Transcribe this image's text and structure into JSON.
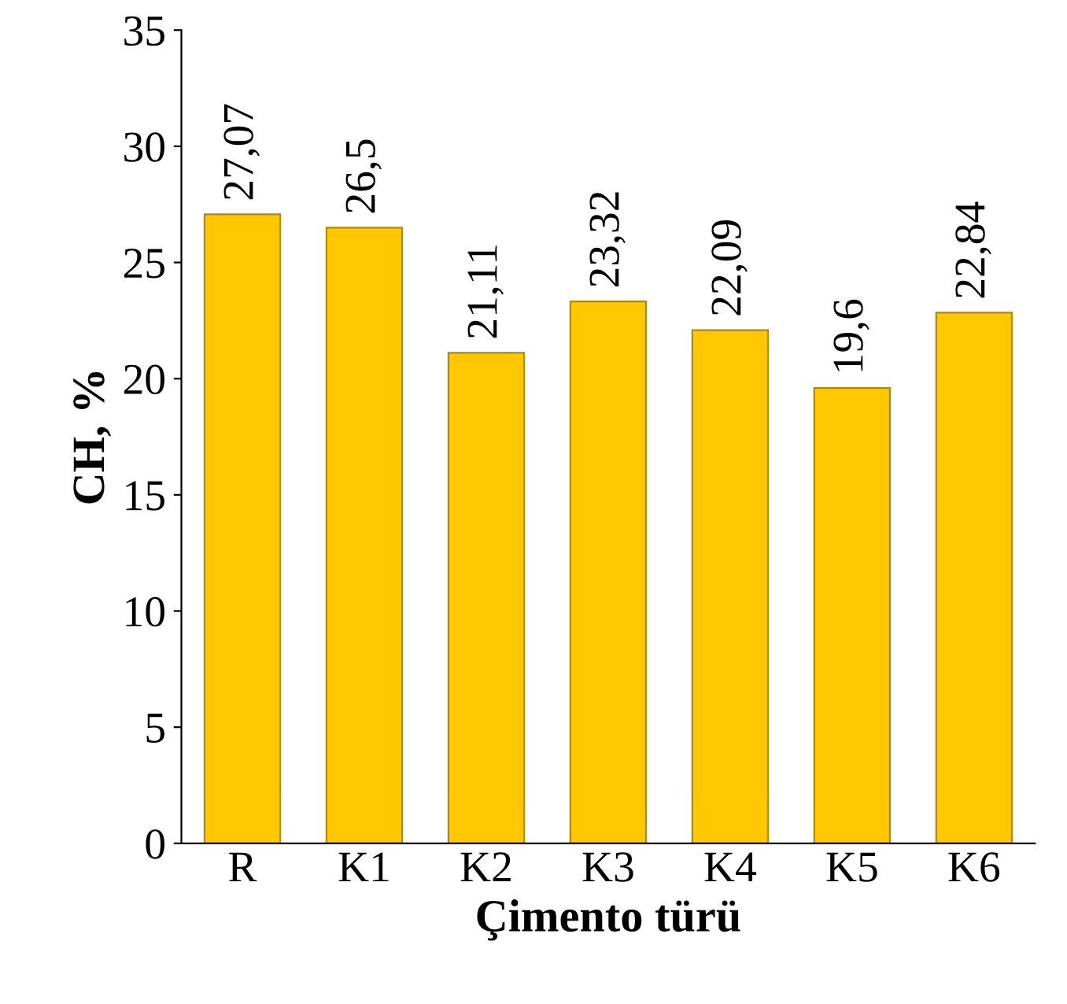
{
  "chart_data": {
    "type": "bar",
    "categories": [
      "R",
      "K1",
      "K2",
      "K3",
      "K4",
      "K5",
      "K6"
    ],
    "values": [
      27.07,
      26.5,
      21.11,
      23.32,
      22.09,
      19.6,
      22.84
    ],
    "value_labels": [
      "27,07",
      "26,5",
      "21,11",
      "23,32",
      "22,09",
      "19,6",
      "22,84"
    ],
    "color": "#ffc800",
    "xlabel": "Çimento türü",
    "ylabel": "CH, %",
    "ylim": [
      0,
      35
    ],
    "yticks": [
      0,
      5,
      10,
      15,
      20,
      25,
      30,
      35
    ],
    "grid": false,
    "legend": false
  }
}
